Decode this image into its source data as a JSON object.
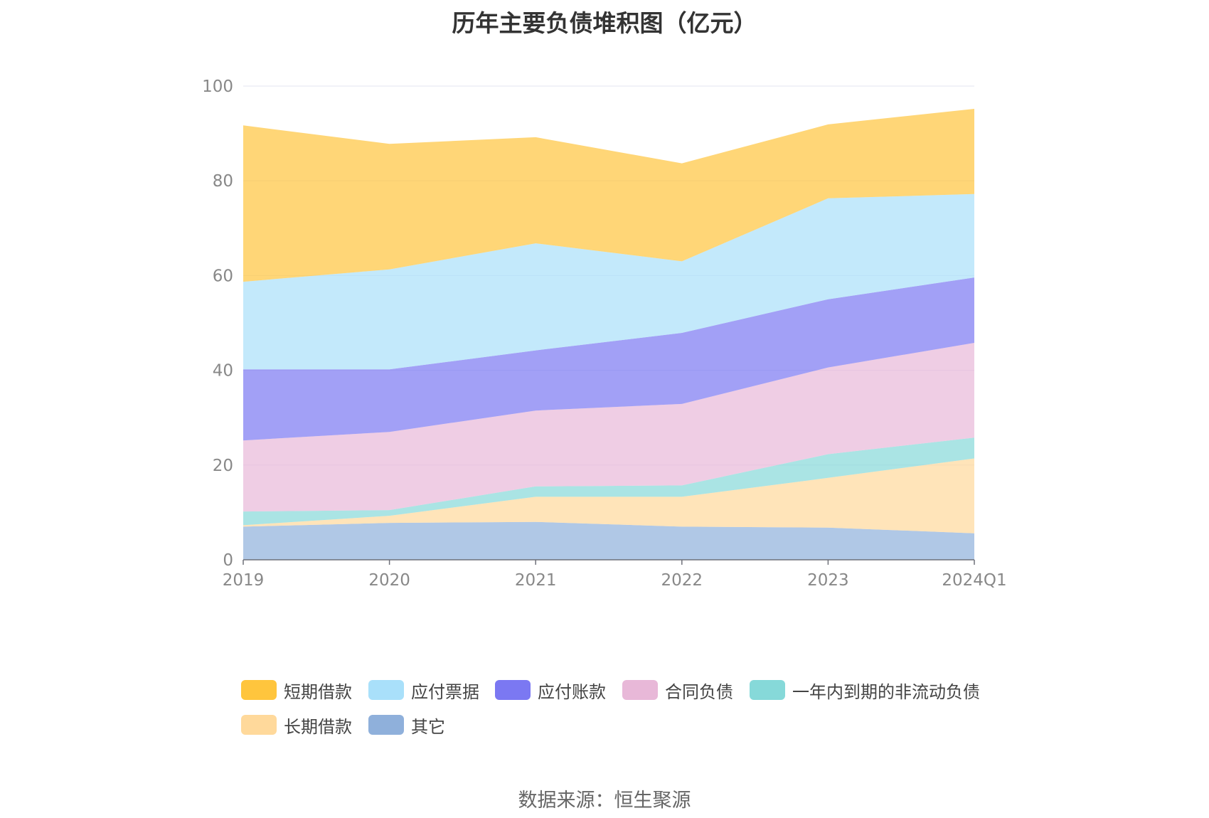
{
  "title": "历年主要负债堆积图（亿元）",
  "source": "数据来源：恒生聚源",
  "chart_data": {
    "type": "area",
    "stacked": true,
    "x": [
      "2019",
      "2020",
      "2021",
      "2022",
      "2023",
      "2024Q1"
    ],
    "ylim": [
      0,
      100
    ],
    "yticks": [
      0,
      20,
      40,
      60,
      80,
      100
    ],
    "series": [
      {
        "name": "其它",
        "color": "#8fb0db",
        "values": [
          7.0,
          7.8,
          8.0,
          7.0,
          6.8,
          5.6
        ]
      },
      {
        "name": "长期借款",
        "color": "#ffd99b",
        "values": [
          0.3,
          1.5,
          5.3,
          6.3,
          10.5,
          15.8
        ]
      },
      {
        "name": "一年内到期的非流动负债",
        "color": "#86d9d9",
        "values": [
          2.9,
          1.2,
          2.2,
          2.4,
          5.0,
          4.4
        ]
      },
      {
        "name": "合同负债",
        "color": "#e8b8d8",
        "values": [
          15.0,
          16.5,
          16.0,
          17.2,
          18.3,
          20.0
        ]
      },
      {
        "name": "应付账款",
        "color": "#7b78f2",
        "values": [
          15.0,
          13.2,
          12.7,
          15.0,
          14.4,
          13.8
        ]
      },
      {
        "name": "应付票据",
        "color": "#a9e0fa",
        "values": [
          18.5,
          21.1,
          22.6,
          15.1,
          21.3,
          17.6
        ]
      },
      {
        "name": "短期借款",
        "color": "#ffc53d",
        "values": [
          33.0,
          26.5,
          22.4,
          20.7,
          15.6,
          18.0
        ]
      }
    ],
    "legend_order": [
      "短期借款",
      "应付票据",
      "应付账款",
      "合同负债",
      "一年内到期的非流动负债",
      "长期借款",
      "其它"
    ],
    "legend_position": "bottom",
    "grid": true
  }
}
